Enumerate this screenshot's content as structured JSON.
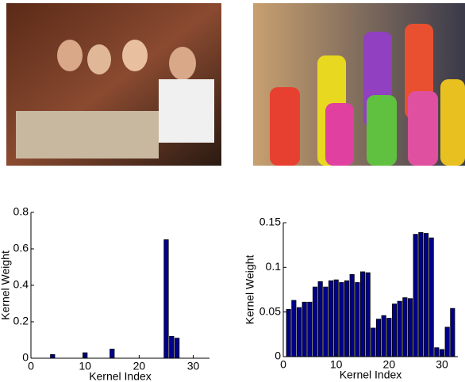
{
  "chart_data": [
    {
      "type": "bar",
      "xlabel": "Kernel Index",
      "ylabel": "Kernel Weight",
      "color": "#00008b",
      "x": [
        1,
        2,
        3,
        4,
        5,
        6,
        7,
        8,
        9,
        10,
        11,
        12,
        13,
        14,
        15,
        16,
        17,
        18,
        19,
        20,
        21,
        22,
        23,
        24,
        25,
        26,
        27,
        28,
        29,
        30,
        31,
        32
      ],
      "values": [
        0,
        0,
        0,
        0.02,
        0,
        0,
        0,
        0,
        0,
        0.03,
        0,
        0,
        0,
        0,
        0.05,
        0,
        0,
        0,
        0,
        0,
        0,
        0,
        0,
        0,
        0.65,
        0.12,
        0.11,
        0,
        0,
        0,
        0,
        0
      ],
      "xlim": [
        0,
        33
      ],
      "xticks": [
        0,
        10,
        20,
        30
      ],
      "ylim": [
        0,
        0.8
      ],
      "yticks": [
        0,
        0.2,
        0.4,
        0.6,
        0.8
      ]
    },
    {
      "type": "bar",
      "xlabel": "Kernel Index",
      "ylabel": "Kernel Weight",
      "color": "#00008b",
      "x": [
        1,
        2,
        3,
        4,
        5,
        6,
        7,
        8,
        9,
        10,
        11,
        12,
        13,
        14,
        15,
        16,
        17,
        18,
        19,
        20,
        21,
        22,
        23,
        24,
        25,
        26,
        27,
        28,
        29,
        30,
        31,
        32
      ],
      "values": [
        0.053,
        0.063,
        0.055,
        0.061,
        0.061,
        0.078,
        0.084,
        0.078,
        0.085,
        0.086,
        0.083,
        0.085,
        0.092,
        0.083,
        0.095,
        0.094,
        0.032,
        0.042,
        0.046,
        0.043,
        0.059,
        0.062,
        0.066,
        0.065,
        0.137,
        0.139,
        0.138,
        0.133,
        0.01,
        0.008,
        0.033,
        0.054
      ],
      "xlim": [
        0,
        33
      ],
      "xticks": [
        0,
        10,
        20,
        30
      ],
      "ylim": [
        0,
        0.15
      ],
      "yticks": [
        0,
        0.05,
        0.1,
        0.15
      ]
    }
  ]
}
